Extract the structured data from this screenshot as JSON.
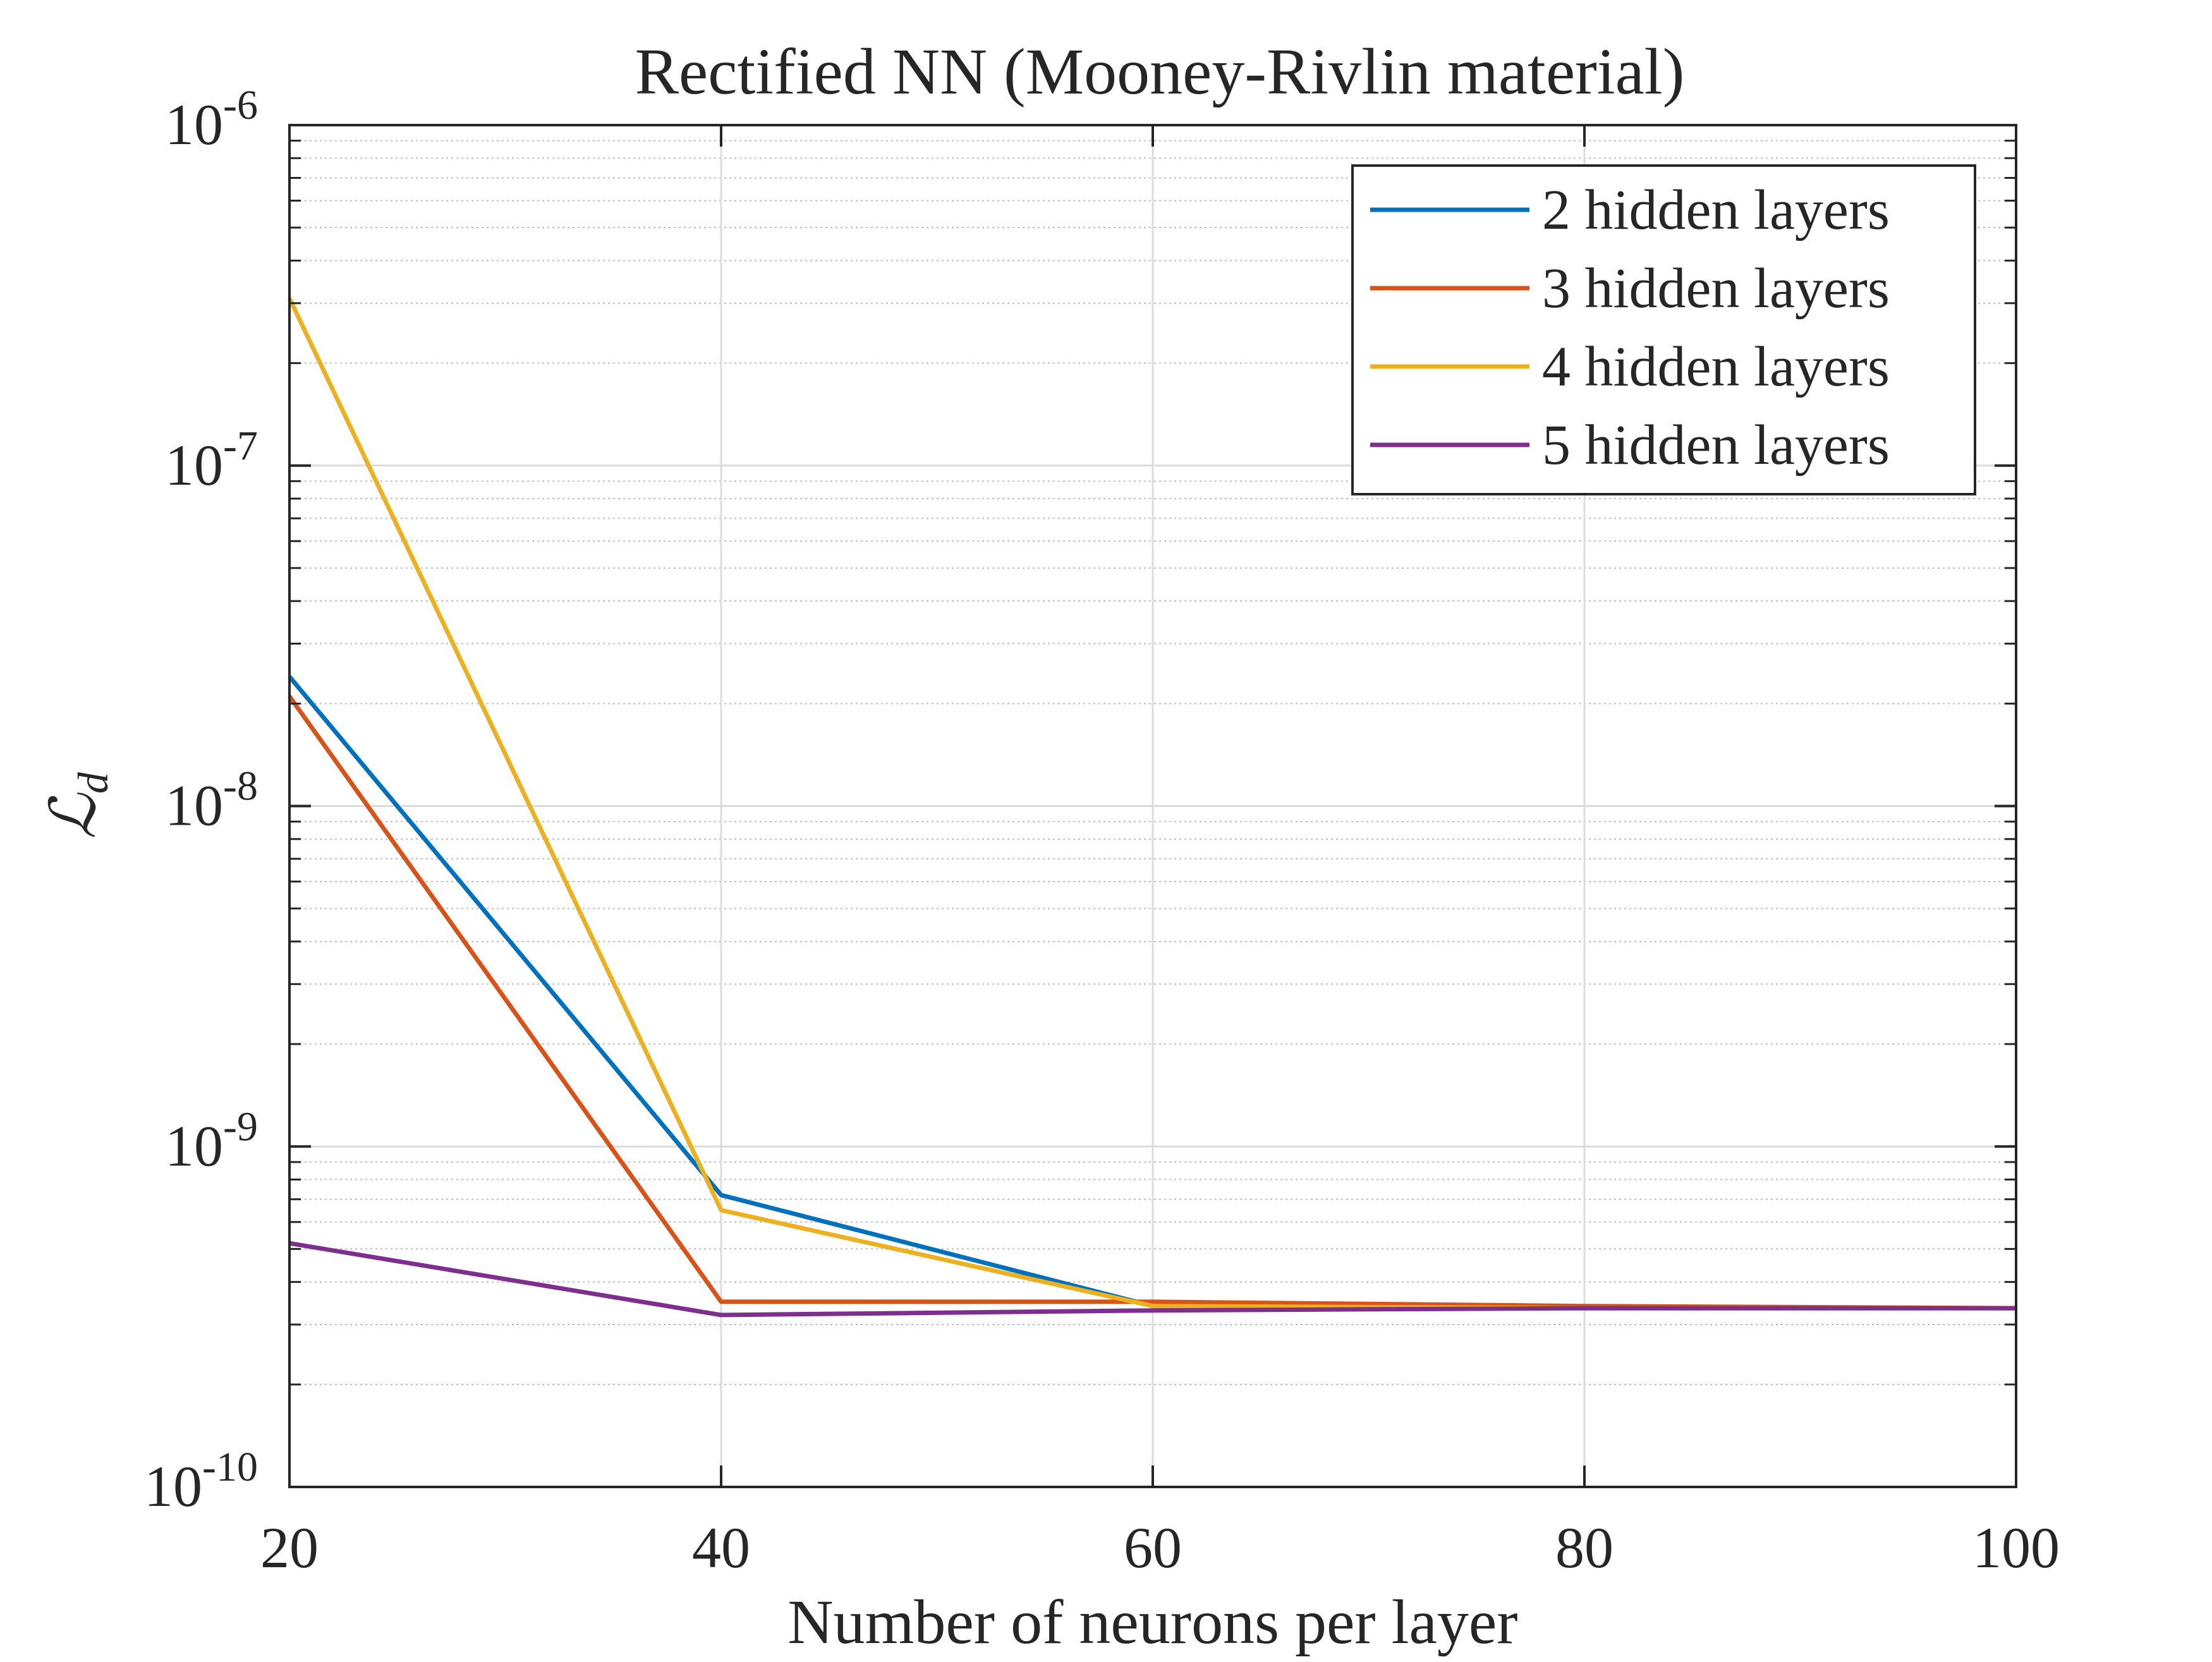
{
  "chart_data": {
    "type": "line",
    "title": "Rectified NN (Mooney-Rivlin material)",
    "xlabel": "Number of neurons per layer",
    "ylabel": "ℒ",
    "ylabel_subscript": "d",
    "xlim": [
      20,
      100
    ],
    "ylim": [
      1e-10,
      1e-06
    ],
    "yscale": "log",
    "grid": true,
    "minor_grid": true,
    "legend_position": "top-right",
    "x_ticks": [
      20,
      40,
      60,
      80,
      100
    ],
    "x_tick_labels": [
      "20",
      "40",
      "60",
      "80",
      "100"
    ],
    "y_ticks": [
      1e-10,
      1e-09,
      1e-08,
      1e-07,
      1e-06
    ],
    "y_tick_labels": [
      {
        "base": "10",
        "exp": "-10"
      },
      {
        "base": "10",
        "exp": "-9"
      },
      {
        "base": "10",
        "exp": "-8"
      },
      {
        "base": "10",
        "exp": "-7"
      },
      {
        "base": "10",
        "exp": "-6"
      }
    ],
    "x": [
      20,
      40,
      60,
      80,
      100
    ],
    "series": [
      {
        "name": "2 hidden layers",
        "color": "#0072BD",
        "values": [
          2.4e-08,
          7.2e-10,
          3.4e-10,
          3.35e-10,
          3.35e-10
        ]
      },
      {
        "name": "3 hidden layers",
        "color": "#D95319",
        "values": [
          2.1e-08,
          3.5e-10,
          3.5e-10,
          3.4e-10,
          3.35e-10
        ]
      },
      {
        "name": "4 hidden layers",
        "color": "#EDB120",
        "values": [
          3.1e-07,
          6.5e-10,
          3.4e-10,
          3.35e-10,
          3.35e-10
        ]
      },
      {
        "name": "5 hidden layers",
        "color": "#7E2F8E",
        "values": [
          5.2e-10,
          3.2e-10,
          3.3e-10,
          3.35e-10,
          3.35e-10
        ]
      }
    ]
  }
}
